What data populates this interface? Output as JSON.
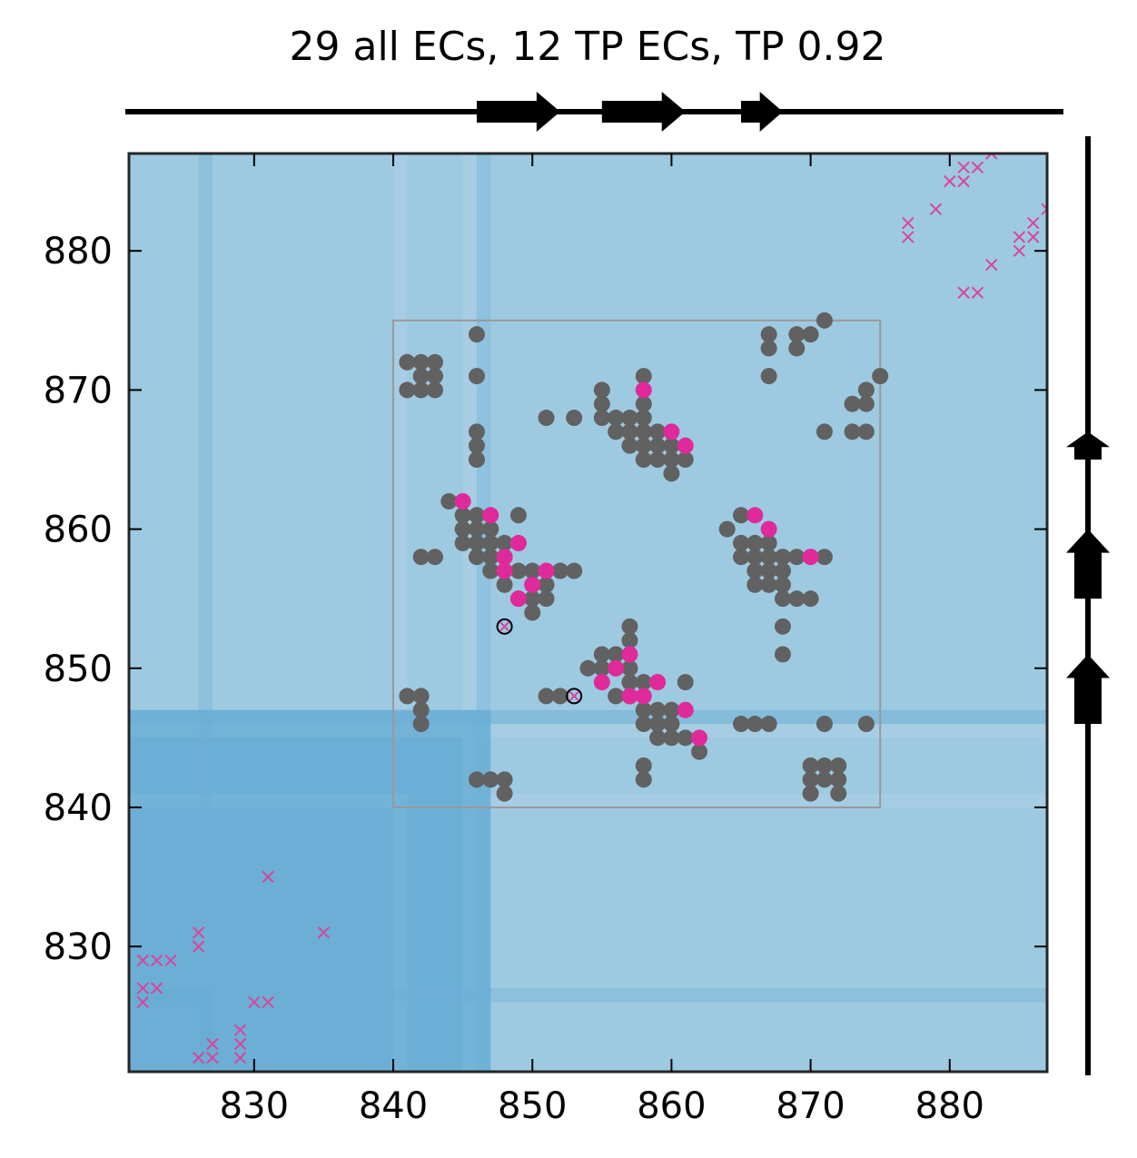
{
  "chart_data": {
    "type": "scatter",
    "title": "29 all ECs, 12 TP ECs, TP 0.92",
    "xlabel": "",
    "ylabel": "",
    "xlim": [
      821,
      887
    ],
    "ylim": [
      821,
      887
    ],
    "x_ticks": [
      830,
      840,
      850,
      860,
      870,
      880
    ],
    "y_ticks": [
      830,
      840,
      850,
      860,
      870,
      880
    ],
    "grid": false,
    "colors": {
      "background": "#9ecae1",
      "band_light": "#a6cde3",
      "band_medium": "#6baed6",
      "band_dark": "#4292c6",
      "grey_point": "#616161",
      "tp_point": "#e0299a",
      "cross": "#d6479a",
      "box": "#999999"
    },
    "top_track_arrows": [
      {
        "start": 846,
        "end": 852
      },
      {
        "start": 855,
        "end": 861
      },
      {
        "start": 865,
        "end": 868
      }
    ],
    "right_track_arrows": [
      {
        "start": 846,
        "end": 851
      },
      {
        "start": 855,
        "end": 860
      },
      {
        "start": 865,
        "end": 867
      }
    ],
    "region_box": {
      "x": [
        840,
        875
      ],
      "y": [
        840,
        875
      ]
    },
    "grey_points": [
      [
        842,
        872
      ],
      [
        843,
        872
      ],
      [
        841,
        872
      ],
      [
        842,
        871
      ],
      [
        843,
        871
      ],
      [
        841,
        870
      ],
      [
        842,
        870
      ],
      [
        843,
        870
      ],
      [
        846,
        874
      ],
      [
        846,
        871
      ],
      [
        846,
        867
      ],
      [
        846,
        866
      ],
      [
        846,
        865
      ],
      [
        844,
        862
      ],
      [
        845,
        861
      ],
      [
        846,
        861
      ],
      [
        845,
        860
      ],
      [
        846,
        860
      ],
      [
        847,
        860
      ],
      [
        845,
        859
      ],
      [
        846,
        859
      ],
      [
        847,
        859
      ],
      [
        848,
        859
      ],
      [
        846,
        858
      ],
      [
        847,
        858
      ],
      [
        848,
        858
      ],
      [
        847,
        857
      ],
      [
        849,
        857
      ],
      [
        850,
        857
      ],
      [
        852,
        857
      ],
      [
        853,
        857
      ],
      [
        848,
        856
      ],
      [
        850,
        856
      ],
      [
        851,
        856
      ],
      [
        849,
        855
      ],
      [
        850,
        855
      ],
      [
        851,
        855
      ],
      [
        850,
        854
      ],
      [
        849,
        861
      ],
      [
        842,
        858
      ],
      [
        843,
        858
      ],
      [
        851,
        868
      ],
      [
        853,
        868
      ],
      [
        855,
        870
      ],
      [
        855,
        869
      ],
      [
        855,
        868
      ],
      [
        856,
        868
      ],
      [
        857,
        868
      ],
      [
        858,
        868
      ],
      [
        856,
        867
      ],
      [
        857,
        867
      ],
      [
        858,
        867
      ],
      [
        859,
        867
      ],
      [
        857,
        866
      ],
      [
        858,
        866
      ],
      [
        859,
        866
      ],
      [
        860,
        866
      ],
      [
        858,
        865
      ],
      [
        859,
        865
      ],
      [
        860,
        865
      ],
      [
        861,
        865
      ],
      [
        860,
        864
      ],
      [
        858,
        871
      ],
      [
        858,
        869
      ],
      [
        867,
        874
      ],
      [
        867,
        873
      ],
      [
        867,
        871
      ],
      [
        869,
        874
      ],
      [
        869,
        873
      ],
      [
        870,
        874
      ],
      [
        871,
        875
      ],
      [
        874,
        870
      ],
      [
        873,
        869
      ],
      [
        874,
        869
      ],
      [
        875,
        871
      ],
      [
        871,
        867
      ],
      [
        873,
        867
      ],
      [
        874,
        867
      ],
      [
        864,
        860
      ],
      [
        865,
        861
      ],
      [
        865,
        859
      ],
      [
        866,
        859
      ],
      [
        867,
        859
      ],
      [
        865,
        858
      ],
      [
        866,
        858
      ],
      [
        867,
        858
      ],
      [
        868,
        858
      ],
      [
        869,
        858
      ],
      [
        871,
        858
      ],
      [
        866,
        857
      ],
      [
        867,
        857
      ],
      [
        868,
        857
      ],
      [
        866,
        856
      ],
      [
        867,
        856
      ],
      [
        868,
        856
      ],
      [
        868,
        855
      ],
      [
        869,
        855
      ],
      [
        870,
        855
      ],
      [
        868,
        853
      ],
      [
        868,
        851
      ],
      [
        851,
        848
      ],
      [
        852,
        848
      ],
      [
        854,
        850
      ],
      [
        855,
        851
      ],
      [
        856,
        851
      ],
      [
        855,
        850
      ],
      [
        856,
        850
      ],
      [
        857,
        849
      ],
      [
        858,
        849
      ],
      [
        856,
        848
      ],
      [
        857,
        848
      ],
      [
        858,
        847
      ],
      [
        859,
        847
      ],
      [
        858,
        846
      ],
      [
        859,
        846
      ],
      [
        860,
        846
      ],
      [
        859,
        845
      ],
      [
        860,
        845
      ],
      [
        861,
        845
      ],
      [
        862,
        844
      ],
      [
        857,
        853
      ],
      [
        857,
        852
      ],
      [
        857,
        850
      ],
      [
        860,
        847
      ],
      [
        861,
        849
      ],
      [
        841,
        848
      ],
      [
        842,
        848
      ],
      [
        842,
        847
      ],
      [
        842,
        846
      ],
      [
        858,
        843
      ],
      [
        858,
        842
      ],
      [
        865,
        846
      ],
      [
        866,
        846
      ],
      [
        867,
        846
      ],
      [
        871,
        846
      ],
      [
        874,
        846
      ],
      [
        846,
        842
      ],
      [
        847,
        842
      ],
      [
        848,
        842
      ],
      [
        848,
        841
      ],
      [
        870,
        843
      ],
      [
        871,
        843
      ],
      [
        872,
        843
      ],
      [
        870,
        842
      ],
      [
        871,
        842
      ],
      [
        872,
        842
      ],
      [
        870,
        841
      ],
      [
        872,
        841
      ]
    ],
    "tp_points": [
      [
        858,
        870
      ],
      [
        860,
        867
      ],
      [
        861,
        866
      ],
      [
        845,
        862
      ],
      [
        847,
        861
      ],
      [
        849,
        859
      ],
      [
        848,
        858
      ],
      [
        848,
        857
      ],
      [
        851,
        857
      ],
      [
        850,
        856
      ],
      [
        849,
        855
      ],
      [
        866,
        861
      ],
      [
        867,
        860
      ],
      [
        870,
        858
      ],
      [
        857,
        851
      ],
      [
        856,
        850
      ],
      [
        855,
        849
      ],
      [
        859,
        849
      ],
      [
        857,
        848
      ],
      [
        858,
        848
      ],
      [
        861,
        847
      ],
      [
        862,
        845
      ]
    ],
    "circled_points": [
      [
        848,
        853
      ],
      [
        853,
        848
      ]
    ],
    "crosses": [
      [
        822,
        829
      ],
      [
        823,
        829
      ],
      [
        824,
        829
      ],
      [
        822,
        827
      ],
      [
        823,
        827
      ],
      [
        822,
        826
      ],
      [
        826,
        831
      ],
      [
        826,
        830
      ],
      [
        826,
        822
      ],
      [
        827,
        822
      ],
      [
        827,
        823
      ],
      [
        829,
        824
      ],
      [
        829,
        823
      ],
      [
        829,
        822
      ],
      [
        830,
        826
      ],
      [
        831,
        826
      ],
      [
        831,
        835
      ],
      [
        835,
        831
      ],
      [
        877,
        882
      ],
      [
        877,
        881
      ],
      [
        879,
        883
      ],
      [
        880,
        885
      ],
      [
        881,
        885
      ],
      [
        881,
        886
      ],
      [
        882,
        886
      ],
      [
        883,
        887
      ],
      [
        881,
        877
      ],
      [
        882,
        877
      ],
      [
        883,
        879
      ],
      [
        885,
        880
      ],
      [
        885,
        881
      ],
      [
        886,
        881
      ],
      [
        886,
        882
      ],
      [
        887,
        883
      ]
    ]
  }
}
